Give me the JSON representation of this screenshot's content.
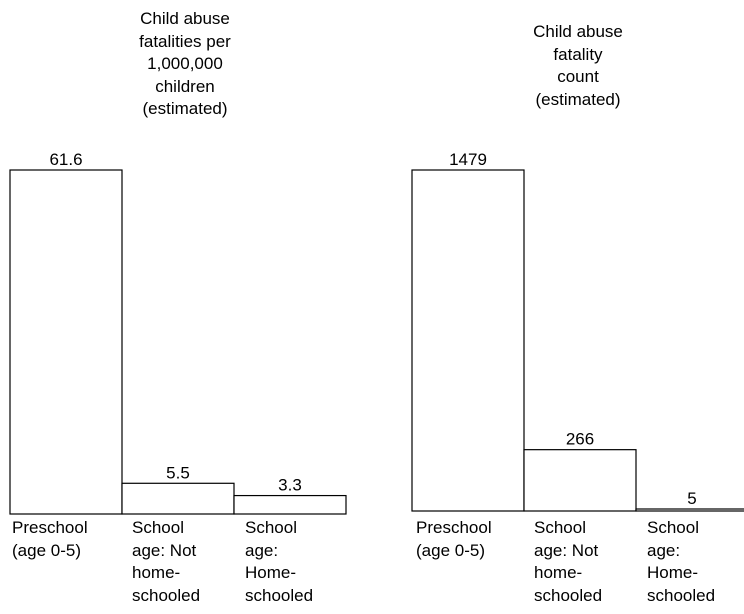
{
  "chart_data": [
    {
      "type": "bar",
      "title": [
        "Child abuse",
        "fatalities per",
        "1,000,000",
        "children",
        "(estimated)"
      ],
      "categories": [
        [
          "Preschool",
          "(age 0-5)"
        ],
        [
          "School",
          "age: Not",
          "home-",
          "schooled"
        ],
        [
          "School",
          "age:",
          "Home-",
          "schooled"
        ]
      ],
      "values": [
        61.6,
        5.5,
        3.3
      ],
      "value_labels": [
        "61.6",
        "5.5",
        "3.3"
      ],
      "xlabel": "",
      "ylabel": "",
      "ylim": [
        0,
        61.6
      ],
      "grid": false,
      "legend": "none"
    },
    {
      "type": "bar",
      "title": [
        "Child abuse",
        "fatality",
        "count",
        "(estimated)"
      ],
      "categories": [
        [
          "Preschool",
          "(age 0-5)"
        ],
        [
          "School",
          "age: Not",
          "home-",
          "schooled"
        ],
        [
          "School",
          "age:",
          "Home-",
          "schooled"
        ]
      ],
      "values": [
        1479,
        266,
        5
      ],
      "value_labels": [
        "1479",
        "266",
        "5"
      ],
      "xlabel": "",
      "ylabel": "",
      "ylim": [
        0,
        1479
      ],
      "grid": false,
      "legend": "none"
    }
  ]
}
